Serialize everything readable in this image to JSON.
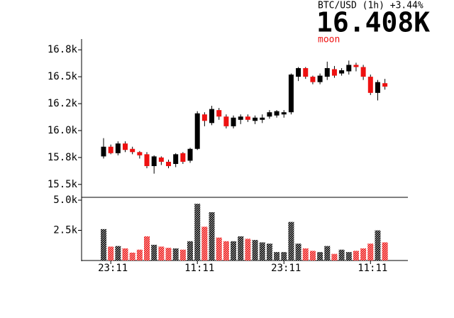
{
  "header": {
    "title": "BTC/USD (1h) +3.44%",
    "price": "16.408K",
    "tag": "moon"
  },
  "chart_data": [
    {
      "type": "candlestick",
      "open": [
        15760,
        15850,
        15790,
        15880,
        15830,
        15800,
        15780,
        15670,
        15750,
        15710,
        15690,
        15790,
        15720,
        15830,
        16150,
        16070,
        16190,
        16130,
        16040,
        16100,
        16130,
        16090,
        16100,
        16130,
        16140,
        16150,
        16170,
        16500,
        16580,
        16500,
        16450,
        16500,
        16570,
        16530,
        16550,
        16610,
        16590,
        16500,
        16350,
        16440
      ],
      "high": [
        15930,
        15870,
        15900,
        15900,
        15850,
        15810,
        15800,
        15770,
        15760,
        15730,
        15790,
        15800,
        15840,
        16180,
        16170,
        16230,
        16210,
        16150,
        16140,
        16150,
        16150,
        16140,
        16150,
        16190,
        16190,
        16190,
        16530,
        16590,
        16590,
        16510,
        16530,
        16640,
        16600,
        16580,
        16650,
        16630,
        16610,
        16520,
        16470,
        16480
      ],
      "low": [
        15740,
        15780,
        15770,
        15800,
        15780,
        15740,
        15650,
        15600,
        15680,
        15650,
        15660,
        15690,
        15700,
        15820,
        16040,
        16050,
        16100,
        16020,
        16020,
        16060,
        16080,
        16060,
        16070,
        16110,
        16120,
        16120,
        16150,
        16460,
        16480,
        16430,
        16430,
        16470,
        16490,
        16510,
        16520,
        16550,
        16470,
        16330,
        16280,
        16380
      ],
      "close": [
        15850,
        15790,
        15880,
        15820,
        15800,
        15770,
        15670,
        15760,
        15710,
        15670,
        15780,
        15710,
        15830,
        16160,
        16090,
        16200,
        16130,
        16040,
        16120,
        16130,
        16100,
        16120,
        16120,
        16170,
        16180,
        16170,
        16520,
        16580,
        16500,
        16450,
        16510,
        16580,
        16510,
        16560,
        16610,
        16590,
        16500,
        16350,
        16450,
        16408
      ],
      "up_color": "#000000",
      "down_color": "#ee1111",
      "ylim": [
        15380,
        16850
      ],
      "yticks": [
        {
          "value": 15500,
          "label": "15.5k"
        },
        {
          "value": 15750,
          "label": "15.8k"
        },
        {
          "value": 16000,
          "label": "16.0k"
        },
        {
          "value": 16250,
          "label": "16.2k"
        },
        {
          "value": 16500,
          "label": "16.5k"
        },
        {
          "value": 16750,
          "label": "16.8k"
        }
      ]
    },
    {
      "type": "bar",
      "categories": [
        null,
        "23:11",
        null,
        null,
        null,
        null,
        null,
        null,
        null,
        null,
        null,
        null,
        null,
        "11:11",
        null,
        null,
        null,
        null,
        null,
        null,
        null,
        null,
        null,
        null,
        null,
        "23:11",
        null,
        null,
        null,
        null,
        null,
        null,
        null,
        null,
        null,
        null,
        null,
        "11:11",
        null,
        null
      ],
      "values": [
        2600,
        1150,
        1200,
        1000,
        650,
        900,
        2000,
        1300,
        1150,
        1050,
        1000,
        900,
        1600,
        4700,
        2800,
        4000,
        1900,
        1600,
        1600,
        2000,
        1800,
        1700,
        1500,
        1400,
        700,
        700,
        3200,
        1400,
        1000,
        800,
        700,
        1200,
        550,
        900,
        700,
        800,
        1000,
        1400,
        2500,
        1500
      ],
      "ylim": [
        0,
        5000
      ],
      "yticks": [
        {
          "value": 2500,
          "label": "2.5k"
        },
        {
          "value": 5000,
          "label": "5.0k"
        }
      ]
    }
  ]
}
